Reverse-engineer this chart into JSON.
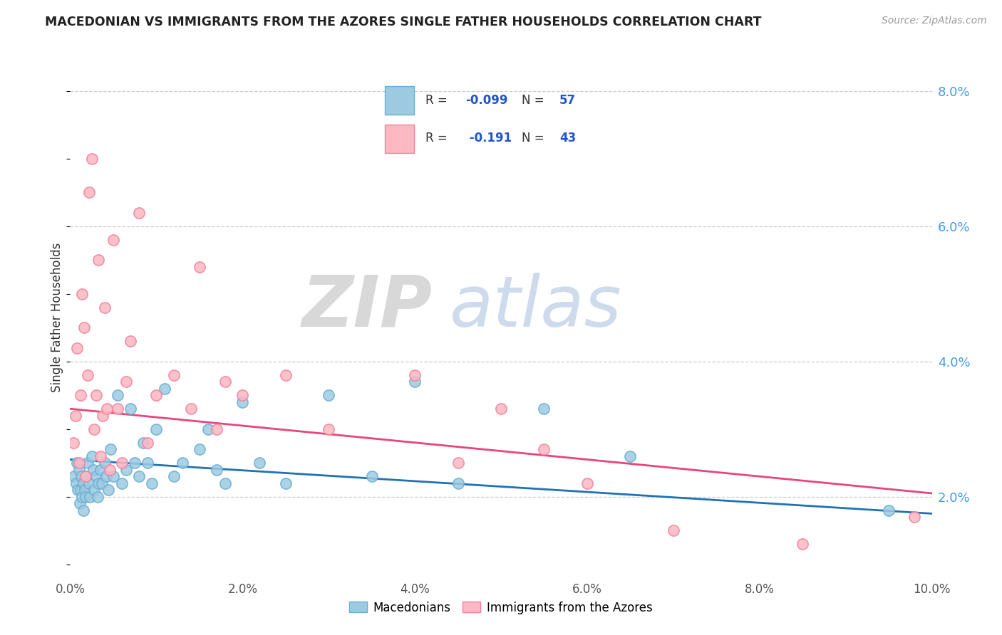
{
  "title": "MACEDONIAN VS IMMIGRANTS FROM THE AZORES SINGLE FATHER HOUSEHOLDS CORRELATION CHART",
  "source_text": "Source: ZipAtlas.com",
  "ylabel": "Single Father Households",
  "xmin": 0.0,
  "xmax": 10.0,
  "ymin": 0.8,
  "ymax": 8.5,
  "yticks": [
    2.0,
    4.0,
    6.0,
    8.0
  ],
  "blue_color": "#9ecae1",
  "pink_color": "#fcb8c3",
  "blue_edge": "#6baed6",
  "pink_edge": "#f4829a",
  "trend_blue": "#2171b5",
  "trend_pink": "#e8457a",
  "watermark_zip": "ZIP",
  "watermark_atlas": "atlas",
  "legend_r1": "R = -0.099",
  "legend_n1": "N = 57",
  "legend_r2": "R =  -0.191",
  "legend_n2": "N = 43",
  "blue_x": [
    0.05,
    0.07,
    0.08,
    0.09,
    0.1,
    0.11,
    0.12,
    0.13,
    0.14,
    0.15,
    0.15,
    0.17,
    0.18,
    0.19,
    0.2,
    0.22,
    0.23,
    0.25,
    0.27,
    0.28,
    0.3,
    0.32,
    0.33,
    0.35,
    0.37,
    0.4,
    0.42,
    0.44,
    0.47,
    0.5,
    0.55,
    0.6,
    0.65,
    0.7,
    0.75,
    0.8,
    0.85,
    0.9,
    0.95,
    1.0,
    1.1,
    1.2,
    1.3,
    1.5,
    1.6,
    1.7,
    1.8,
    2.0,
    2.2,
    2.5,
    3.0,
    3.5,
    4.0,
    4.5,
    5.5,
    6.5,
    9.5
  ],
  "blue_y": [
    2.3,
    2.2,
    2.5,
    2.1,
    2.4,
    1.9,
    2.1,
    2.3,
    2.0,
    2.2,
    1.8,
    2.1,
    2.0,
    2.3,
    2.5,
    2.2,
    2.0,
    2.6,
    2.4,
    2.1,
    2.3,
    2.0,
    2.2,
    2.4,
    2.2,
    2.5,
    2.3,
    2.1,
    2.7,
    2.3,
    3.5,
    2.2,
    2.4,
    3.3,
    2.5,
    2.3,
    2.8,
    2.5,
    2.2,
    3.0,
    3.6,
    2.3,
    2.5,
    2.7,
    3.0,
    2.4,
    2.2,
    3.4,
    2.5,
    2.2,
    3.5,
    2.3,
    3.7,
    2.2,
    3.3,
    2.6,
    1.8
  ],
  "pink_x": [
    0.04,
    0.06,
    0.08,
    0.1,
    0.12,
    0.14,
    0.16,
    0.18,
    0.2,
    0.22,
    0.25,
    0.28,
    0.3,
    0.33,
    0.35,
    0.38,
    0.4,
    0.43,
    0.46,
    0.5,
    0.55,
    0.6,
    0.65,
    0.7,
    0.8,
    0.9,
    1.0,
    1.2,
    1.4,
    1.5,
    1.7,
    1.8,
    2.0,
    2.5,
    3.0,
    4.0,
    4.5,
    5.0,
    5.5,
    6.0,
    7.0,
    8.5,
    9.8
  ],
  "pink_y": [
    2.8,
    3.2,
    4.2,
    2.5,
    3.5,
    5.0,
    4.5,
    2.3,
    3.8,
    6.5,
    7.0,
    3.0,
    3.5,
    5.5,
    2.6,
    3.2,
    4.8,
    3.3,
    2.4,
    5.8,
    3.3,
    2.5,
    3.7,
    4.3,
    6.2,
    2.8,
    3.5,
    3.8,
    3.3,
    5.4,
    3.0,
    3.7,
    3.5,
    3.8,
    3.0,
    3.8,
    2.5,
    3.3,
    2.7,
    2.2,
    1.5,
    1.3,
    1.7
  ]
}
